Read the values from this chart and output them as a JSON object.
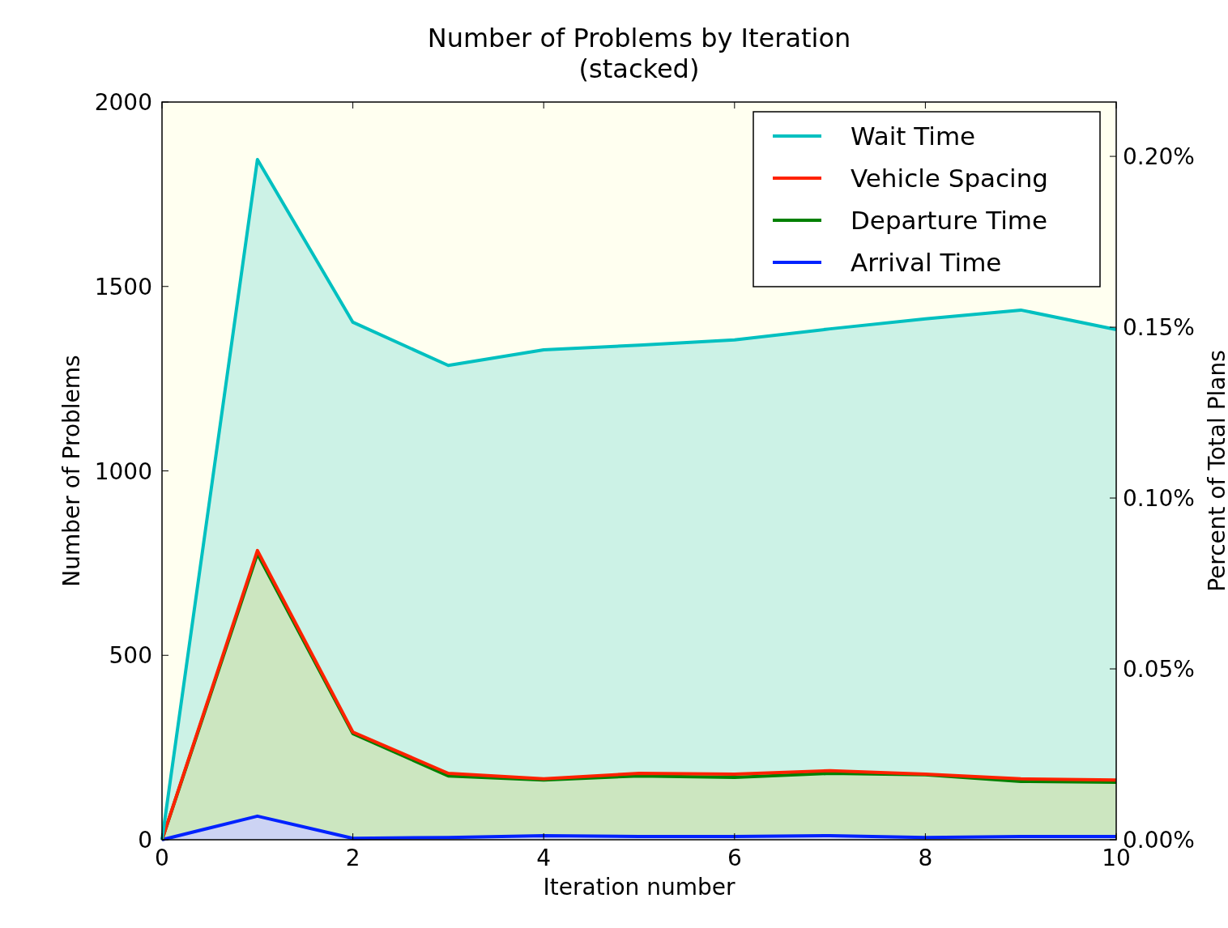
{
  "chart_data": {
    "type": "area",
    "title": "Number of Problems by Iteration\n(stacked)",
    "xlabel": "Iteration number",
    "ylabel": "Number of Problems",
    "y2label": "Percent of Total Plans",
    "x": [
      0,
      1,
      2,
      3,
      4,
      5,
      6,
      7,
      8,
      9,
      10
    ],
    "stacked": true,
    "series": [
      {
        "name": "Arrival Time",
        "color": "#0022ff",
        "values": [
          0,
          64,
          4,
          6,
          11,
          9,
          9,
          11,
          6,
          9,
          9
        ]
      },
      {
        "name": "Departure Time",
        "color": "#008000",
        "values": [
          0,
          711,
          284,
          167,
          151,
          164,
          160,
          169,
          170,
          149,
          147
        ]
      },
      {
        "name": "Vehicle Spacing",
        "color": "#ff2200",
        "values": [
          0,
          9,
          4,
          7,
          3,
          7,
          9,
          7,
          2,
          7,
          6
        ]
      },
      {
        "name": "Wait Time",
        "color": "#00c0c0",
        "values": [
          0,
          1060,
          1111,
          1106,
          1163,
          1161,
          1177,
          1198,
          1234,
          1271,
          1221
        ]
      }
    ],
    "xlim": [
      0,
      10
    ],
    "xticks": [
      0,
      2,
      4,
      6,
      8,
      10
    ],
    "ylim": [
      0,
      2000
    ],
    "yticks": [
      0,
      500,
      1000,
      1500,
      2000
    ],
    "y2lim": [
      0,
      0.2159
    ],
    "y2ticks": [
      {
        "value": 0,
        "label": "0.00%"
      },
      {
        "value": 0.05,
        "label": "0.05%"
      },
      {
        "value": 0.1,
        "label": "0.10%"
      },
      {
        "value": 0.15,
        "label": "0.15%"
      },
      {
        "value": 0.2,
        "label": "0.20%"
      }
    ],
    "legend": "top right",
    "grid": false
  }
}
